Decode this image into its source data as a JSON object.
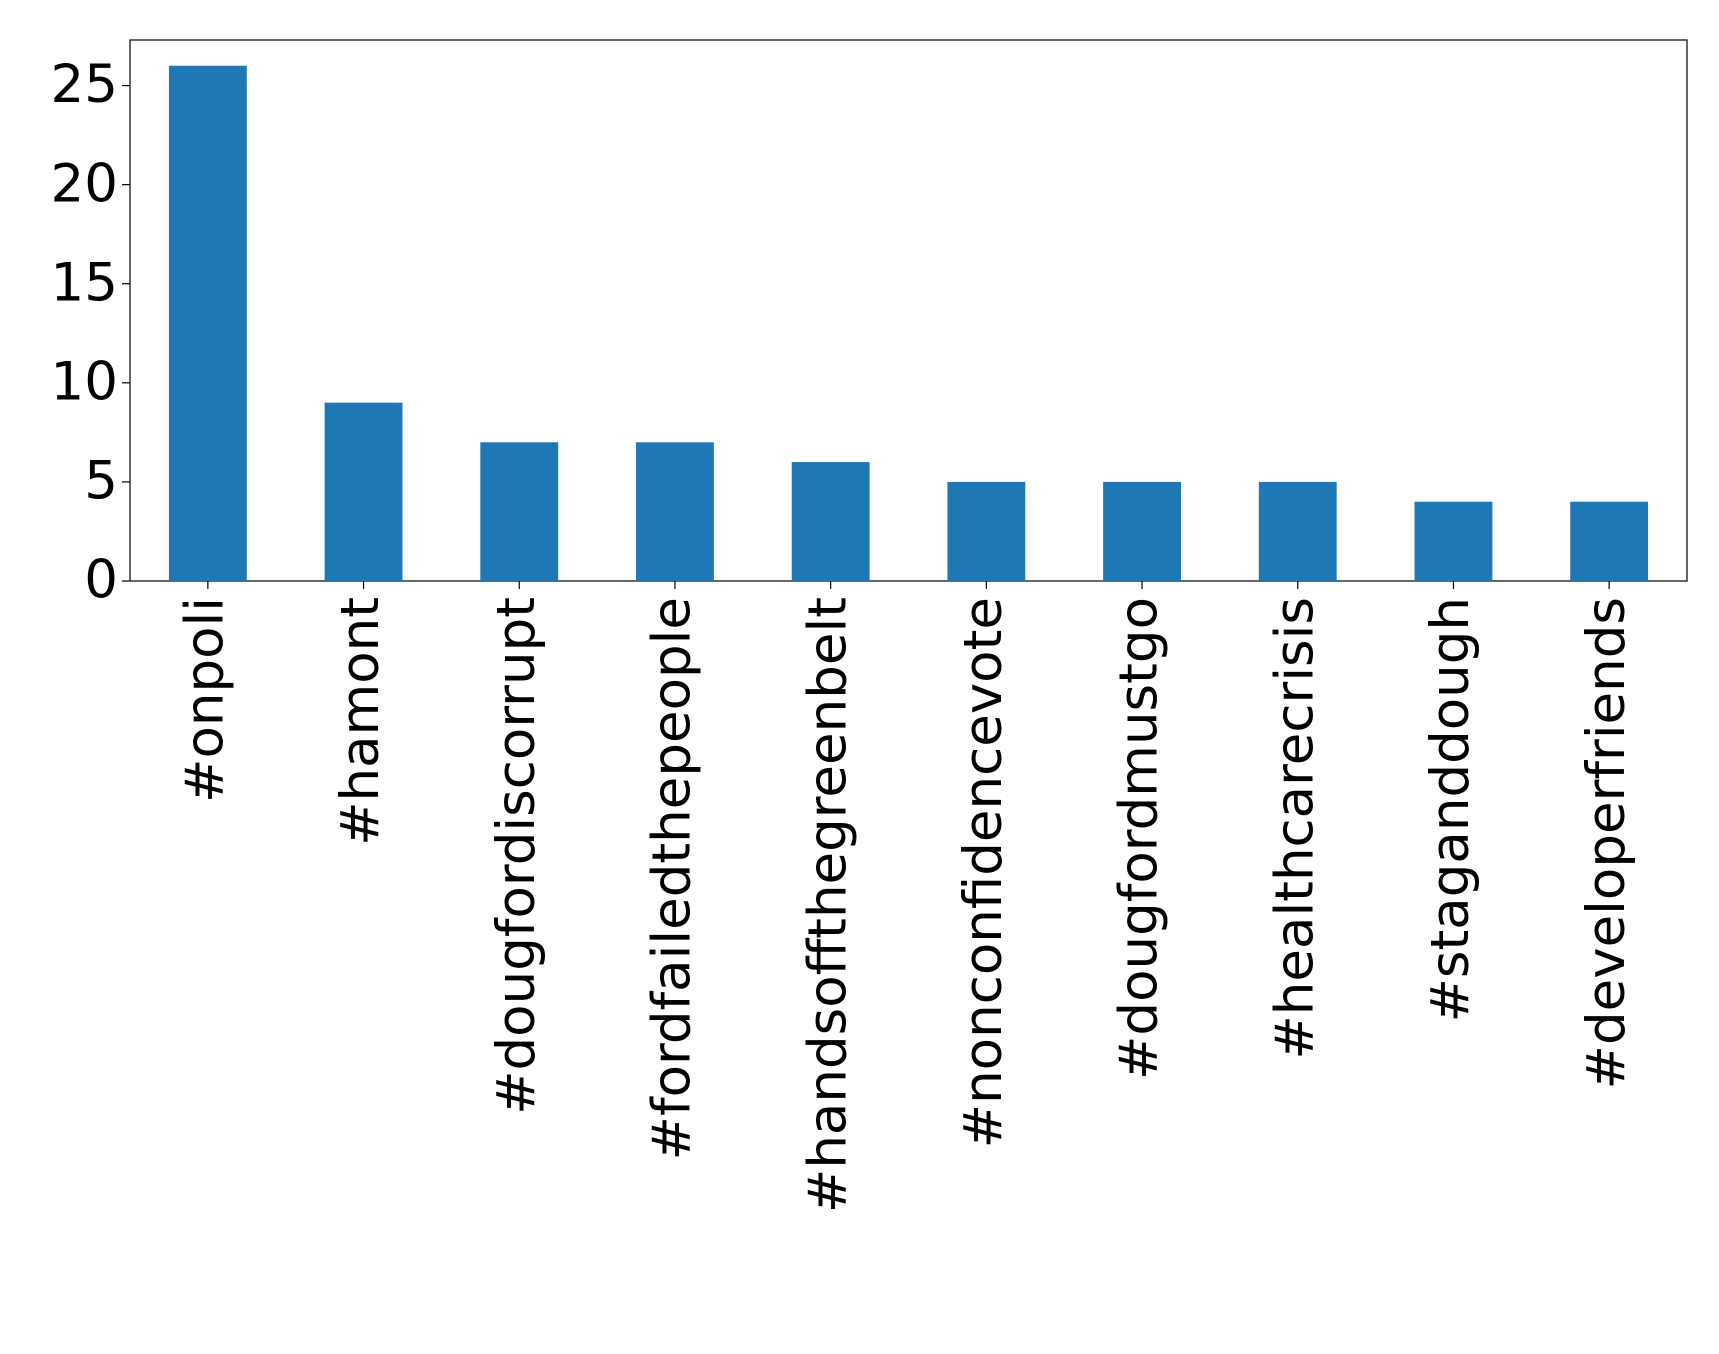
{
  "chart_data": {
    "type": "bar",
    "categories": [
      "#onpoli",
      "#hamont",
      "#dougfordiscorrupt",
      "#fordfailedthepeople",
      "#handsoffthegreenbelt",
      "#nonconfidencevote",
      "#dougfordmustgo",
      "#healthcarecrisis",
      "#staganddough",
      "#developerfriends"
    ],
    "values": [
      26,
      9,
      7,
      7,
      6,
      5,
      5,
      5,
      4,
      4
    ],
    "color": "#1f77b4",
    "ylim": [
      0,
      27.3
    ],
    "yticks": [
      0,
      5,
      10,
      15,
      20,
      25
    ],
    "grid": false
  }
}
